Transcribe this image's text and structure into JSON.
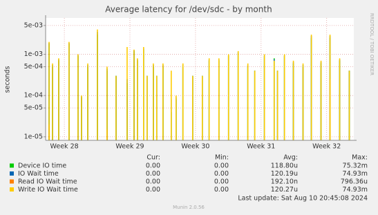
{
  "chart_data": {
    "type": "spike",
    "title": "Average latency for /dev/sdc - by month",
    "ylabel": "seconds",
    "log_scale": true,
    "grid": true,
    "xlim": [
      0,
      32.9
    ],
    "xticks": [
      {
        "value": 2,
        "label": "Week 28"
      },
      {
        "value": 9,
        "label": "Week 29"
      },
      {
        "value": 16,
        "label": "Week 30"
      },
      {
        "value": 23,
        "label": "Week 31"
      },
      {
        "value": 30,
        "label": "Week 32"
      }
    ],
    "ylim": [
      8.2e-06,
      0.0076
    ],
    "yticks": [
      {
        "value": 1e-05,
        "label": "1e-05"
      },
      {
        "value": 5e-05,
        "label": "5e-05"
      },
      {
        "value": 0.0001,
        "label": "1e-04"
      },
      {
        "value": 0.0005,
        "label": "5e-04"
      },
      {
        "value": 0.001,
        "label": "1e-03"
      },
      {
        "value": 0.005,
        "label": "5e-03"
      }
    ],
    "x": [
      0.37,
      0.74,
      1.4,
      2.5,
      3.46,
      3.83,
      4.5,
      5.53,
      6.56,
      7.52,
      8.7,
      9.44,
      9.8,
      10.46,
      10.83,
      11.5,
      11.86,
      12.53,
      13.41,
      13.93,
      14.66,
      15.7,
      16.73,
      17.46,
      18.5,
      19.53,
      20.56,
      21.59,
      22.33,
      23.36,
      24.4,
      24.76,
      25.5,
      26.45,
      27.48,
      28.37,
      29.4,
      30.36,
      31.39,
      32.42
    ],
    "series": [
      {
        "name": "Device IO time",
        "color": "#00cc00",
        "values": [
          0.0018,
          0.0005,
          0.0007,
          0.0018,
          0.0009,
          9e-05,
          0.0005,
          0.003,
          0.0004,
          0.0003,
          0.0002,
          0.0012,
          0.0007,
          0.0013,
          0.0003,
          0.0005,
          0.0003,
          0.0005,
          4e-05,
          8e-05,
          0.0005,
          0.0003,
          0.0003,
          0.0007,
          0.0007,
          0.0009,
          0.0011,
          0.0005,
          0.0004,
          0.0009,
          0.0008,
          0.0004,
          0.0009,
          0.0006,
          0.0005,
          0.0025,
          0.0006,
          0.0025,
          0.0007,
          0.0004
        ]
      },
      {
        "name": "IO Wait time",
        "color": "#0066b3",
        "values": [
          0.0019,
          0.00055,
          0.00075,
          0.0019,
          0.00095,
          9.5e-05,
          0.00055,
          0.0035,
          0.00045,
          0.0003,
          0.00025,
          0.00125,
          0.00075,
          0.0014,
          0.0003,
          0.00055,
          0.0003,
          0.00055,
          8e-05,
          9e-05,
          0.00055,
          0.0003,
          0.0003,
          0.00075,
          0.00075,
          0.00095,
          0.00115,
          0.00055,
          0.0004,
          0.00095,
          0.00075,
          0.0004,
          0.00095,
          0.00065,
          0.00055,
          0.0028,
          0.00065,
          0.0028,
          0.00075,
          0.0004
        ]
      },
      {
        "name": "Read IO Wait time",
        "color": "#ff8000",
        "values": [
          2e-05,
          null,
          null,
          null,
          null,
          null,
          null,
          null,
          1.5e-05,
          null,
          null,
          null,
          null,
          null,
          null,
          null,
          null,
          null,
          null,
          null,
          null,
          null,
          null,
          null,
          null,
          null,
          null,
          null,
          null,
          null,
          null,
          null,
          null,
          null,
          null,
          null,
          null,
          0.00025,
          null,
          null
        ]
      },
      {
        "name": "Write IO Wait time",
        "color": "#ffcc00",
        "values": [
          0.002,
          0.0006,
          0.0008,
          0.002,
          0.001,
          0.0001,
          0.0006,
          0.004,
          0.0005,
          0.0003,
          0.0015,
          0.0013,
          0.0008,
          0.0015,
          0.0003,
          0.0006,
          0.0003,
          0.0006,
          0.0004,
          0.0001,
          0.0006,
          0.0003,
          0.0003,
          0.0008,
          0.0008,
          0.001,
          0.0012,
          0.0006,
          0.0004,
          0.001,
          0.0007,
          0.0004,
          0.001,
          0.0007,
          0.0006,
          0.003,
          0.0007,
          0.003,
          0.0008,
          0.0004
        ]
      }
    ],
    "stats_headers": [
      "Cur:",
      "Min:",
      "Avg:",
      "Max:"
    ],
    "stats": [
      [
        "0.00",
        "0.00",
        "118.80u",
        "75.32m"
      ],
      [
        "0.00",
        "0.00",
        "120.19u",
        "74.93m"
      ],
      [
        "0.00",
        "0.00",
        "192.10n",
        "796.36u"
      ],
      [
        "0.00",
        "0.00",
        "120.27u",
        "74.93m"
      ]
    ],
    "last_update": "Last update: Sat Aug 10 20:45:08 2024",
    "footer": "Munin 2.0.56",
    "watermark": "RRDTOOL / TOBI OETIKER"
  }
}
